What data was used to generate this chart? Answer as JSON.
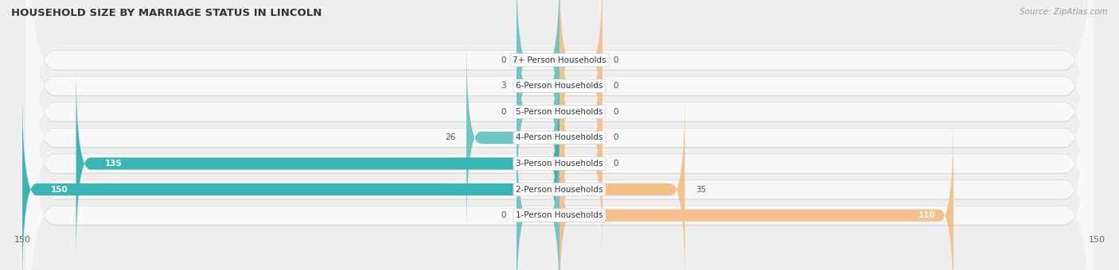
{
  "title": "HOUSEHOLD SIZE BY MARRIAGE STATUS IN LINCOLN",
  "source": "Source: ZipAtlas.com",
  "categories": [
    "7+ Person Households",
    "6-Person Households",
    "5-Person Households",
    "4-Person Households",
    "3-Person Households",
    "2-Person Households",
    "1-Person Households"
  ],
  "family_values": [
    0,
    3,
    0,
    26,
    135,
    150,
    0
  ],
  "nonfamily_values": [
    0,
    0,
    0,
    0,
    0,
    35,
    110
  ],
  "family_color_light": "#6ec6c6",
  "family_color_dark": "#3ab5b5",
  "nonfamily_color": "#f5c08a",
  "axis_limit": 150,
  "min_stub": 12,
  "bg_color": "#efefef",
  "row_bg": "#f7f7f7",
  "row_bg_shadow": "#e0e0e0"
}
